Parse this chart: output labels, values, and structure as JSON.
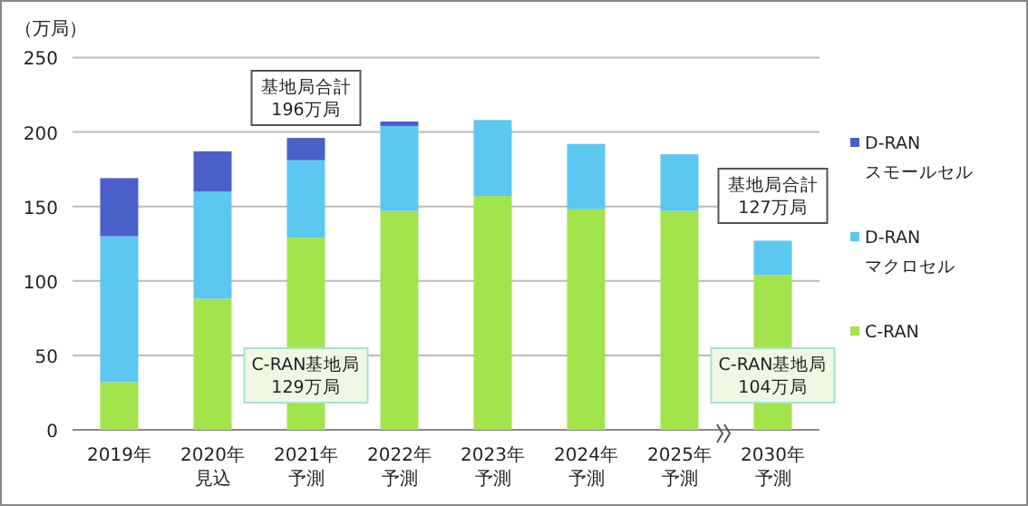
{
  "chart_data": {
    "type": "bar",
    "stacked": true,
    "ylabel": "（万局）",
    "categories": [
      "2019年",
      "2020年見込",
      "2021年予測",
      "2022年予測",
      "2023年予測",
      "2024年予測",
      "2025年予測",
      "2030年予測"
    ],
    "series": [
      {
        "name": "C-RAN",
        "color": "#a3e34c",
        "values": [
          32,
          88,
          129,
          147,
          157,
          148,
          147,
          104
        ]
      },
      {
        "name": "D-RAN\nマクロセル",
        "color": "#5cc8f0",
        "values": [
          98,
          72,
          52,
          57,
          51,
          44,
          38,
          23
        ]
      },
      {
        "name": "D-RAN\nスモールセル",
        "color": "#4a60c8",
        "values": [
          39,
          27,
          15,
          3,
          0,
          0,
          0,
          0
        ]
      }
    ],
    "ylim": [
      0,
      250
    ],
    "yticks": [
      0,
      50,
      100,
      150,
      200,
      250
    ],
    "grid": "y",
    "legend": "right",
    "annotations": [
      "基地局合計\n196万局",
      "C-RAN基地局\n129万局",
      "基地局合計\n127万局",
      "C-RAN基地局\n104万局"
    ]
  }
}
